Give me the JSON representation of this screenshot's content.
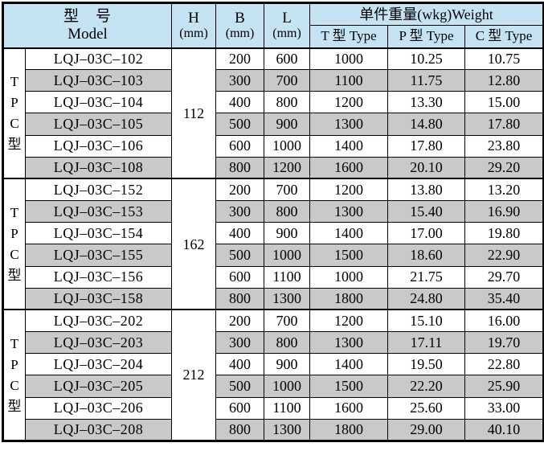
{
  "colors": {
    "header_bg": "#c5e3f3",
    "stripe_bg": "#c9c9c9",
    "row_bg": "#ffffff",
    "border": "#000000",
    "text": "#000000"
  },
  "header": {
    "model_cn": "型　号",
    "model_en": "Model",
    "dims": [
      {
        "label": "H",
        "unit": "(mm)"
      },
      {
        "label": "B",
        "unit": "(mm)"
      },
      {
        "label": "L",
        "unit": "(mm)"
      }
    ],
    "weight_title": "单件重量(wkg)Weight",
    "weight_cols": [
      "T 型 Type",
      "P 型 Type",
      "C 型 Type"
    ]
  },
  "groups": [
    {
      "side_label": [
        "T",
        "P",
        "C",
        "型"
      ],
      "h_value": "112",
      "rows": [
        {
          "model": "LQJ–03C–102",
          "b": "200",
          "l": "600",
          "t": "1000",
          "p": "10.25",
          "c": "10.75",
          "shaded": false
        },
        {
          "model": "LQJ–03C–103",
          "b": "300",
          "l": "700",
          "t": "1100",
          "p": "11.75",
          "c": "12.80",
          "shaded": true
        },
        {
          "model": "LQJ–03C–104",
          "b": "400",
          "l": "800",
          "t": "1200",
          "p": "13.30",
          "c": "15.00",
          "shaded": false
        },
        {
          "model": "LQJ–03C–105",
          "b": "500",
          "l": "900",
          "t": "1300",
          "p": "14.80",
          "c": "17.80",
          "shaded": true
        },
        {
          "model": "LQJ–03C–106",
          "b": "600",
          "l": "1000",
          "t": "1400",
          "p": "17.80",
          "c": "23.80",
          "shaded": false
        },
        {
          "model": "LQJ–03C–108",
          "b": "800",
          "l": "1200",
          "t": "1600",
          "p": "20.10",
          "c": "29.20",
          "shaded": true
        }
      ]
    },
    {
      "side_label": [
        "T",
        "P",
        "C",
        "型"
      ],
      "h_value": "162",
      "rows": [
        {
          "model": "LQJ–03C–152",
          "b": "200",
          "l": "700",
          "t": "1200",
          "p": "13.80",
          "c": "13.20",
          "shaded": false
        },
        {
          "model": "LQJ–03C–153",
          "b": "300",
          "l": "800",
          "t": "1300",
          "p": "15.40",
          "c": "16.90",
          "shaded": true
        },
        {
          "model": "LQJ–03C–154",
          "b": "400",
          "l": "900",
          "t": "1400",
          "p": "17.00",
          "c": "19.80",
          "shaded": false
        },
        {
          "model": "LQJ–03C–155",
          "b": "500",
          "l": "1000",
          "t": "1500",
          "p": "18.60",
          "c": "22.90",
          "shaded": true
        },
        {
          "model": "LQJ–03C–156",
          "b": "600",
          "l": "1100",
          "t": "1000",
          "p": "21.75",
          "c": "29.70",
          "shaded": false
        },
        {
          "model": "LQJ–03C–158",
          "b": "800",
          "l": "1300",
          "t": "1800",
          "p": "24.80",
          "c": "35.40",
          "shaded": true
        }
      ]
    },
    {
      "side_label": [
        "T",
        "P",
        "C",
        "型"
      ],
      "h_value": "212",
      "rows": [
        {
          "model": "LQJ–03C–202",
          "b": "200",
          "l": "700",
          "t": "1200",
          "p": "15.10",
          "c": "16.00",
          "shaded": false
        },
        {
          "model": "LQJ–03C–203",
          "b": "300",
          "l": "800",
          "t": "1300",
          "p": "17.11",
          "c": "19.70",
          "shaded": true
        },
        {
          "model": "LQJ–03C–204",
          "b": "400",
          "l": "900",
          "t": "1400",
          "p": "19.50",
          "c": "22.80",
          "shaded": false
        },
        {
          "model": "LQJ–03C–205",
          "b": "500",
          "l": "1000",
          "t": "1500",
          "p": "22.20",
          "c": "25.90",
          "shaded": true
        },
        {
          "model": "LQJ–03C–206",
          "b": "600",
          "l": "1100",
          "t": "1600",
          "p": "25.60",
          "c": "33.00",
          "shaded": false
        },
        {
          "model": "LQJ–03C–208",
          "b": "800",
          "l": "1300",
          "t": "1800",
          "p": "29.00",
          "c": "40.10",
          "shaded": true
        }
      ]
    }
  ]
}
